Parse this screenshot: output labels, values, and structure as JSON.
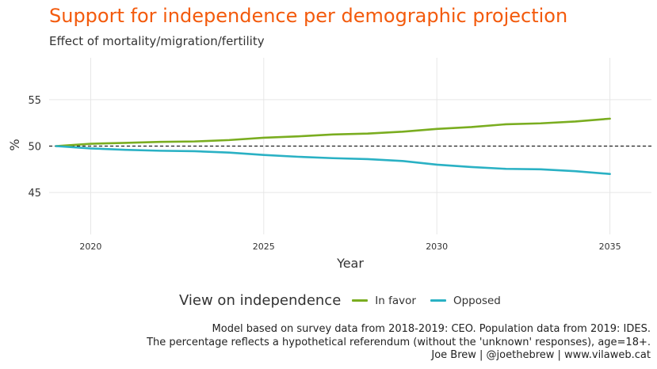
{
  "header": {
    "title": "Support for independence per demographic projection",
    "subtitle": "Effect of mortality/migration/fertility"
  },
  "colors": {
    "title": "#f35a0c",
    "in_favor": "#7aad20",
    "opposed": "#2ab1c4",
    "grid": "#e6e6e6",
    "reference_line": "#222222"
  },
  "legend": {
    "title": "View on independence",
    "items": [
      {
        "label": "In favor",
        "color": "#7aad20"
      },
      {
        "label": "Opposed",
        "color": "#2ab1c4"
      }
    ]
  },
  "caption": {
    "line1": "Model based on survey data from 2018-2019: CEO. Population data from 2019: IDES.",
    "line2": "The percentage reflects a hypothetical referendum (without the 'unknown' responses), age=18+.",
    "line3": "Joe Brew | @joethebrew | www.vilaweb.cat"
  },
  "chart_data": {
    "type": "line",
    "title": "Support for independence per demographic projection",
    "subtitle": "Effect of mortality/migration/fertility",
    "xlabel": "Year",
    "ylabel": "%",
    "x": [
      2019,
      2020,
      2021,
      2022,
      2023,
      2024,
      2025,
      2026,
      2027,
      2028,
      2029,
      2030,
      2031,
      2032,
      2033,
      2034,
      2035
    ],
    "series": [
      {
        "name": "In favor",
        "color": "#7aad20",
        "values": [
          50.0,
          50.25,
          50.35,
          50.45,
          50.5,
          50.65,
          50.9,
          51.05,
          51.25,
          51.35,
          51.55,
          51.85,
          52.05,
          52.35,
          52.45,
          52.65,
          52.95
        ]
      },
      {
        "name": "Opposed",
        "color": "#2ab1c4",
        "values": [
          50.0,
          49.75,
          49.6,
          49.5,
          49.45,
          49.3,
          49.05,
          48.85,
          48.7,
          48.6,
          48.4,
          48.0,
          47.75,
          47.55,
          47.5,
          47.3,
          47.0
        ]
      }
    ],
    "reference_line": {
      "y": 50,
      "style": "dashed"
    },
    "xticks": [
      2020,
      2025,
      2030,
      2035
    ],
    "yticks": [
      45,
      50,
      55
    ],
    "xlim": [
      2018.8,
      2036.2
    ],
    "ylim": [
      40.5,
      59.5
    ],
    "grid": true,
    "legend_position": "bottom"
  }
}
